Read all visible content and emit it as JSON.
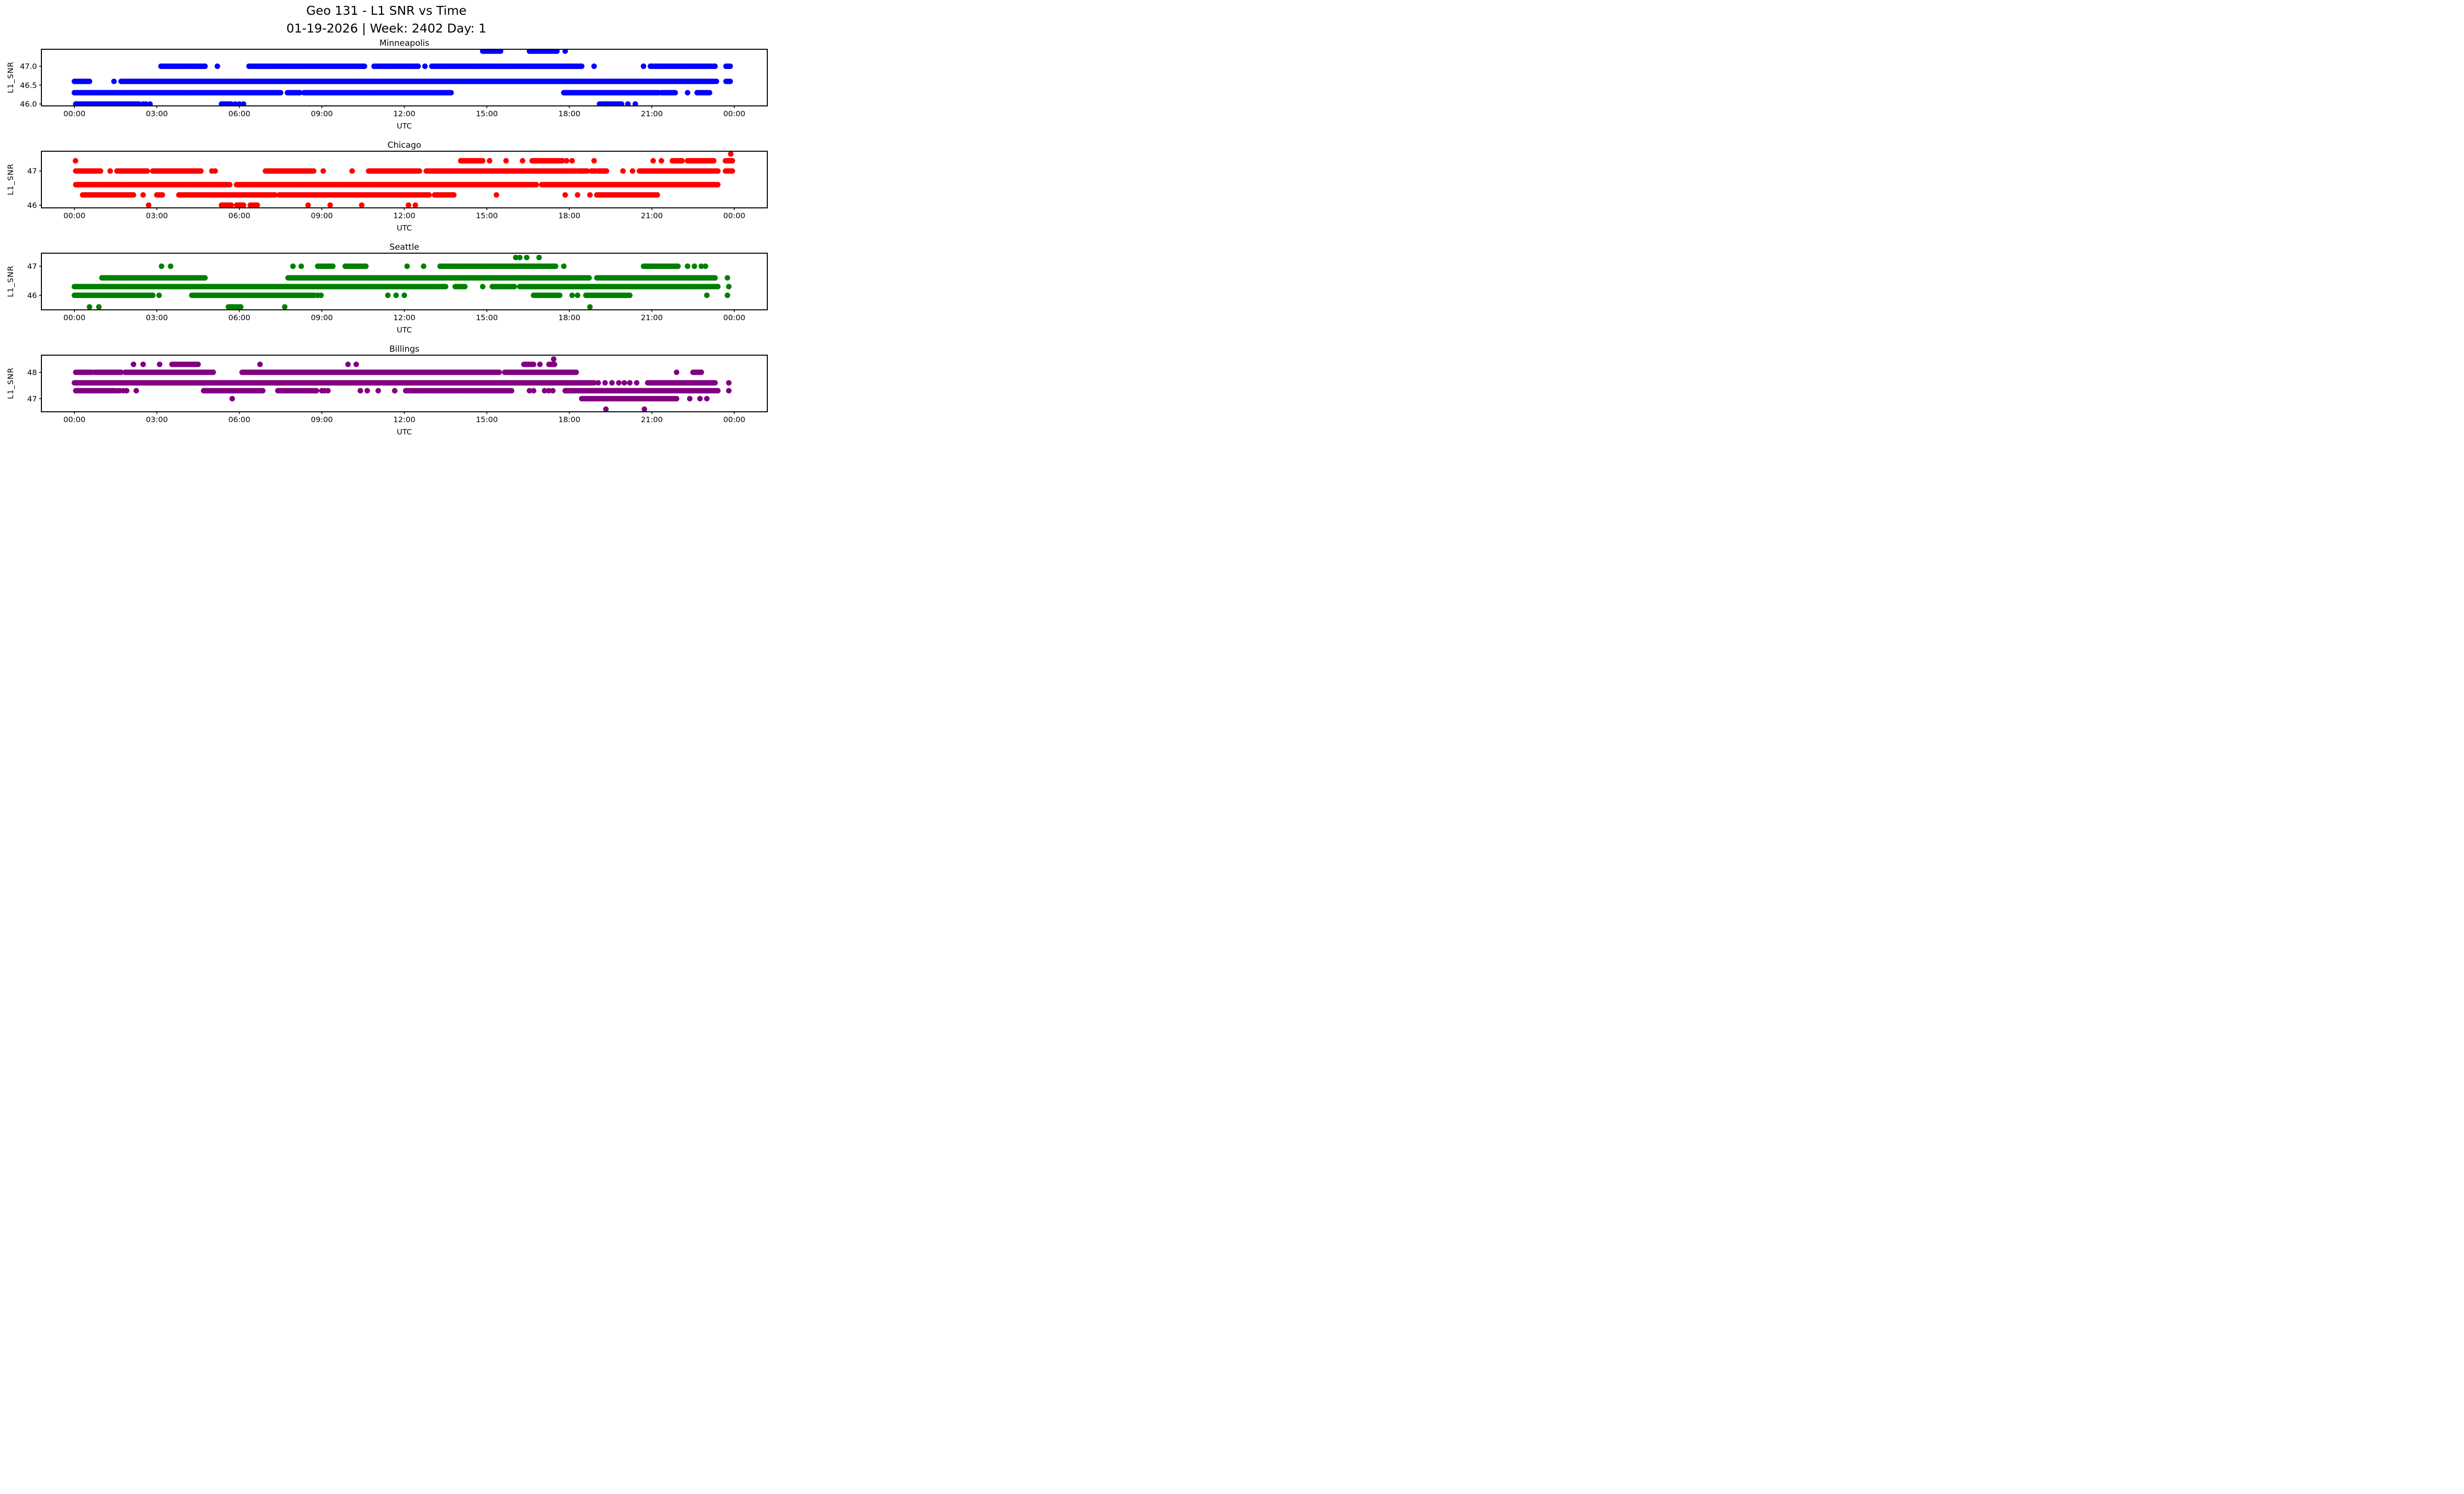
{
  "title": {
    "line1": "Geo 131 - L1 SNR vs Time",
    "line2": "01-19-2026 | Week: 2402 Day: 1"
  },
  "xlabel": "UTC",
  "ylabel": "L1_SNR",
  "x_ticks": {
    "hours": [
      0,
      3,
      6,
      9,
      12,
      15,
      18,
      21,
      24
    ],
    "labels": [
      "00:00",
      "03:00",
      "06:00",
      "09:00",
      "12:00",
      "15:00",
      "18:00",
      "21:00",
      "00:00"
    ]
  },
  "chart_data": [
    {
      "type": "scatter",
      "title": "Minneapolis",
      "marker": "filled-circle",
      "color": "#0000ff",
      "ylim": [
        45.95,
        47.45
      ],
      "yticks": [
        {
          "value": 46.0,
          "label": "46.0"
        },
        {
          "value": 46.5,
          "label": "46.5"
        },
        {
          "value": 47.0,
          "label": "47.0"
        }
      ],
      "snr_levels": [
        46.0,
        46.3,
        46.6,
        47.0,
        47.4
      ],
      "series": [
        {
          "level": 47.4,
          "segments": [
            [
              14.85,
              15.5
            ],
            [
              16.55,
              17.55
            ]
          ],
          "points": [
            17.85
          ]
        },
        {
          "level": 47.0,
          "segments": [
            [
              3.15,
              4.75
            ],
            [
              6.35,
              10.55
            ],
            [
              10.9,
              12.5
            ],
            [
              13.0,
              18.45
            ],
            [
              20.95,
              23.3
            ],
            [
              23.7,
              23.85
            ]
          ],
          "points": [
            5.2,
            12.75,
            18.9,
            20.7
          ]
        },
        {
          "level": 46.6,
          "segments": [
            [
              0.0,
              0.55
            ],
            [
              1.7,
              23.35
            ],
            [
              23.7,
              23.85
            ]
          ],
          "points": [
            1.44
          ]
        },
        {
          "level": 46.3,
          "segments": [
            [
              0.0,
              7.5
            ],
            [
              7.75,
              8.2
            ],
            [
              8.35,
              13.7
            ],
            [
              17.8,
              21.25
            ],
            [
              21.35,
              21.85
            ],
            [
              22.65,
              23.1
            ]
          ],
          "points": [
            17.9,
            22.3
          ]
        },
        {
          "level": 46.0,
          "segments": [
            [
              0.05,
              2.1
            ],
            [
              2.2,
              2.35
            ],
            [
              5.35,
              5.7
            ],
            [
              19.1,
              19.9
            ]
          ],
          "points": [
            2.5,
            2.6,
            2.75,
            5.85,
            6.0,
            6.15,
            20.13,
            20.4
          ]
        }
      ]
    },
    {
      "type": "scatter",
      "title": "Chicago",
      "marker": "filled-circle",
      "color": "#ff0000",
      "ylim": [
        45.92,
        47.58
      ],
      "yticks": [
        {
          "value": 46.0,
          "label": "46"
        },
        {
          "value": 47.0,
          "label": "47"
        }
      ],
      "snr_levels": [
        46.0,
        46.3,
        46.6,
        47.0,
        47.3,
        47.5
      ],
      "series": [
        {
          "level": 47.5,
          "segments": [],
          "points": [
            23.87
          ]
        },
        {
          "level": 47.3,
          "segments": [
            [
              14.05,
              14.85
            ],
            [
              16.65,
              17.75
            ],
            [
              21.75,
              22.1
            ],
            [
              22.3,
              23.25
            ],
            [
              23.68,
              23.95
            ]
          ],
          "points": [
            0.04,
            15.1,
            15.7,
            16.3,
            17.9,
            18.1,
            18.9,
            21.05,
            21.35
          ]
        },
        {
          "level": 47.0,
          "segments": [
            [
              0.05,
              0.95
            ],
            [
              1.55,
              2.65
            ],
            [
              2.85,
              4.6
            ],
            [
              6.95,
              8.7
            ],
            [
              10.7,
              12.55
            ],
            [
              12.8,
              18.2
            ],
            [
              18.3,
              18.65
            ],
            [
              18.8,
              18.95
            ],
            [
              19.05,
              19.35
            ],
            [
              20.55,
              23.4
            ],
            [
              23.68,
              23.95
            ]
          ],
          "points": [
            1.3,
            5.0,
            5.12,
            9.05,
            10.1,
            19.95,
            20.3
          ]
        },
        {
          "level": 46.6,
          "segments": [
            [
              0.05,
              5.65
            ],
            [
              5.9,
              16.8
            ],
            [
              17.0,
              23.4
            ]
          ],
          "points": []
        },
        {
          "level": 46.3,
          "segments": [
            [
              0.3,
              2.15
            ],
            [
              3.0,
              3.2
            ],
            [
              3.8,
              7.3
            ],
            [
              7.45,
              12.9
            ],
            [
              13.1,
              13.8
            ],
            [
              19.0,
              21.2
            ]
          ],
          "points": [
            2.5,
            15.35,
            17.85,
            18.3,
            18.75
          ]
        },
        {
          "level": 46.0,
          "segments": [
            [
              5.35,
              5.7
            ],
            [
              5.9,
              6.15
            ],
            [
              6.4,
              6.65
            ]
          ],
          "points": [
            2.7,
            8.5,
            9.3,
            10.45,
            12.15,
            12.4
          ]
        }
      ]
    },
    {
      "type": "scatter",
      "title": "Seattle",
      "marker": "filled-circle",
      "color": "#008000",
      "ylim": [
        45.5,
        47.45
      ],
      "yticks": [
        {
          "value": 46.0,
          "label": "46"
        },
        {
          "value": 47.0,
          "label": "47"
        }
      ],
      "snr_levels": [
        45.6,
        46.0,
        46.3,
        46.6,
        47.0,
        47.3
      ],
      "series": [
        {
          "level": 47.3,
          "segments": [],
          "points": [
            16.05,
            16.2,
            16.45,
            16.9
          ]
        },
        {
          "level": 47.0,
          "segments": [
            [
              8.85,
              9.4
            ],
            [
              9.85,
              10.6
            ],
            [
              13.3,
              17.5
            ],
            [
              20.7,
              21.95
            ]
          ],
          "points": [
            3.17,
            3.5,
            7.95,
            8.25,
            12.1,
            12.7,
            17.8,
            22.3,
            22.55,
            22.8,
            22.95
          ]
        },
        {
          "level": 46.6,
          "segments": [
            [
              1.0,
              4.77
            ],
            [
              7.77,
              18.75
            ],
            [
              19.0,
              23.3
            ]
          ],
          "points": [
            23.75
          ]
        },
        {
          "level": 46.3,
          "segments": [
            [
              0.0,
              13.5
            ],
            [
              13.85,
              14.2
            ],
            [
              15.2,
              16.0
            ],
            [
              16.2,
              23.4
            ]
          ],
          "points": [
            14.85,
            23.8
          ]
        },
        {
          "level": 46.0,
          "segments": [
            [
              0.0,
              2.85
            ],
            [
              4.27,
              8.75
            ],
            [
              16.7,
              17.65
            ],
            [
              18.6,
              20.2
            ]
          ],
          "points": [
            3.08,
            8.85,
            8.97,
            11.4,
            11.7,
            12.0,
            18.1,
            18.3,
            23.0,
            23.75
          ]
        },
        {
          "level": 45.6,
          "segments": [
            [
              5.6,
              6.05
            ]
          ],
          "points": [
            0.55,
            0.89,
            7.65,
            18.75
          ]
        }
      ]
    },
    {
      "type": "scatter",
      "title": "Billings",
      "marker": "filled-circle",
      "color": "#800080",
      "ylim": [
        46.5,
        48.65
      ],
      "yticks": [
        {
          "value": 47.0,
          "label": "47"
        },
        {
          "value": 48.0,
          "label": "48"
        }
      ],
      "snr_levels": [
        46.6,
        47.0,
        47.3,
        47.6,
        48.0,
        48.3,
        48.5
      ],
      "series": [
        {
          "level": 48.5,
          "segments": [],
          "points": [
            17.43
          ]
        },
        {
          "level": 48.3,
          "segments": [
            [
              3.55,
              4.5
            ],
            [
              16.35,
              16.7
            ],
            [
              17.26,
              17.48
            ]
          ],
          "points": [
            2.15,
            2.5,
            3.1,
            6.75,
            9.95,
            10.25,
            16.93
          ]
        },
        {
          "level": 48.0,
          "segments": [
            [
              0.05,
              0.65
            ],
            [
              0.75,
              1.7
            ],
            [
              1.85,
              5.05
            ],
            [
              6.1,
              15.45
            ],
            [
              15.65,
              18.25
            ],
            [
              22.5,
              22.8
            ]
          ],
          "points": [
            21.9
          ]
        },
        {
          "level": 47.6,
          "segments": [
            [
              0.0,
              18.9
            ],
            [
              20.85,
              23.3
            ]
          ],
          "points": [
            19.05,
            19.3,
            19.55,
            19.8,
            20.0,
            20.2,
            20.45,
            23.8
          ]
        },
        {
          "level": 47.3,
          "segments": [
            [
              0.05,
              1.45
            ],
            [
              4.7,
              6.85
            ],
            [
              7.4,
              8.8
            ],
            [
              12.05,
              15.9
            ],
            [
              17.85,
              23.4
            ]
          ],
          "points": [
            1.55,
            1.65,
            1.78,
            1.9,
            2.25,
            9.0,
            9.1,
            9.22,
            10.4,
            10.65,
            11.05,
            11.65,
            16.55,
            16.7,
            17.1,
            17.25,
            17.4,
            23.8
          ]
        },
        {
          "level": 47.0,
          "segments": [
            [
              18.45,
              21.1
            ],
            [
              21.15,
              21.9
            ]
          ],
          "points": [
            5.74,
            22.38,
            22.75,
            23.0
          ]
        },
        {
          "level": 46.6,
          "segments": [],
          "points": [
            19.33,
            20.73
          ]
        }
      ]
    }
  ]
}
